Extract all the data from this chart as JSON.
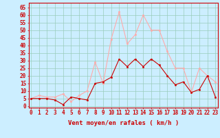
{
  "hours": [
    0,
    1,
    2,
    3,
    4,
    5,
    6,
    7,
    8,
    9,
    10,
    11,
    12,
    13,
    14,
    15,
    16,
    17,
    18,
    19,
    20,
    21,
    22,
    23
  ],
  "vent_moyen": [
    5,
    5,
    5,
    4,
    1,
    6,
    5,
    4,
    15,
    16,
    19,
    31,
    26,
    31,
    26,
    31,
    27,
    20,
    14,
    16,
    9,
    11,
    20,
    6
  ],
  "rafales": [
    5,
    7,
    6,
    6,
    8,
    3,
    7,
    10,
    29,
    15,
    44,
    62,
    41,
    47,
    60,
    50,
    50,
    36,
    25,
    25,
    9,
    25,
    20,
    16
  ],
  "color_moyen": "#cc0000",
  "color_rafales": "#ffaaaa",
  "bg_color": "#cceeff",
  "grid_color": "#99ccbb",
  "xlabel": "Vent moyen/en rafales ( km/h )",
  "ylabel_ticks": [
    0,
    5,
    10,
    15,
    20,
    25,
    30,
    35,
    40,
    45,
    50,
    55,
    60,
    65
  ],
  "ylim": [
    -1,
    68
  ],
  "xlim": [
    -0.3,
    23.3
  ],
  "axis_color": "#cc0000",
  "tick_color": "#cc0000",
  "label_fontsize": 6.5,
  "tick_fontsize": 5.5
}
